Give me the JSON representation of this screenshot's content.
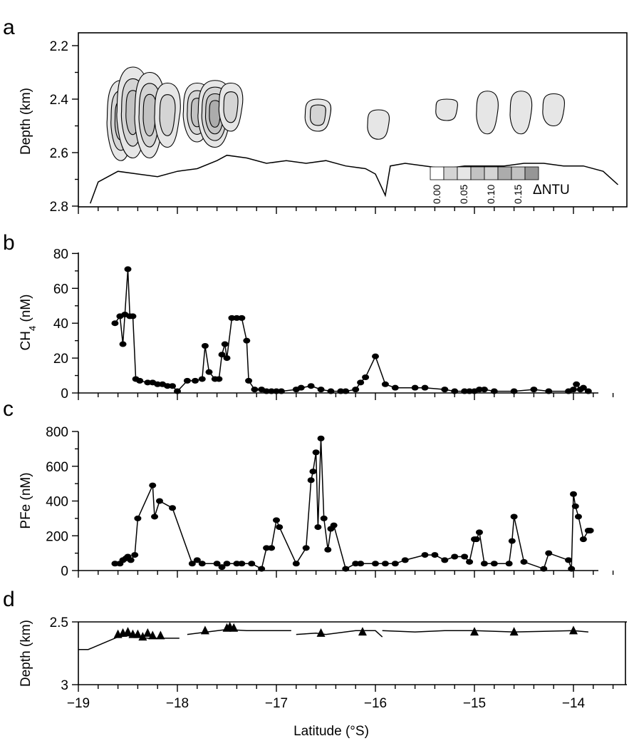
{
  "panels": {
    "a": "a",
    "b": "b",
    "c": "c",
    "d": "d"
  },
  "chart_data": [
    {
      "type": "heatmap",
      "panel": "a",
      "ylabel": "Depth (km)",
      "yticks": [
        "2.2",
        "2.4",
        "2.6",
        "2.8"
      ],
      "ylim": [
        2.15,
        2.8
      ],
      "xlim": [
        -19,
        -13.5
      ],
      "legend": {
        "title": "ΔNTU",
        "ticks": [
          "0.00",
          "0.05",
          "0.10",
          "0.15"
        ],
        "colors": [
          "#ffffff",
          "#e6e6e6",
          "#d4d4d4",
          "#c2c2c2",
          "#acacac",
          "#969696"
        ]
      },
      "plumes": [
        {
          "lat": -18.57,
          "top": 2.33,
          "bottom": 2.63,
          "level": 0.05
        },
        {
          "lat": -18.45,
          "top": 2.28,
          "bottom": 2.62,
          "level": 0.07
        },
        {
          "lat": -18.28,
          "top": 2.3,
          "bottom": 2.62,
          "level": 0.06
        },
        {
          "lat": -18.1,
          "top": 2.34,
          "bottom": 2.58,
          "level": 0.04
        },
        {
          "lat": -17.8,
          "top": 2.34,
          "bottom": 2.56,
          "level": 0.05
        },
        {
          "lat": -17.62,
          "top": 2.33,
          "bottom": 2.58,
          "level": 0.08
        },
        {
          "lat": -17.46,
          "top": 2.34,
          "bottom": 2.52,
          "level": 0.03
        },
        {
          "lat": -16.58,
          "top": 2.4,
          "bottom": 2.52,
          "level": 0.04
        },
        {
          "lat": -15.97,
          "top": 2.44,
          "bottom": 2.55,
          "level": 0.02
        },
        {
          "lat": -15.28,
          "top": 2.4,
          "bottom": 2.48,
          "level": 0.02
        },
        {
          "lat": -14.87,
          "top": 2.37,
          "bottom": 2.53,
          "level": 0.02
        },
        {
          "lat": -14.53,
          "top": 2.37,
          "bottom": 2.53,
          "level": 0.02
        },
        {
          "lat": -14.2,
          "top": 2.38,
          "bottom": 2.5,
          "level": 0.02
        }
      ],
      "bottom_profile": {
        "lat": [
          -18.88,
          -18.8,
          -18.6,
          -18.4,
          -18.2,
          -18.0,
          -17.8,
          -17.6,
          -17.5,
          -17.3,
          -17.1,
          -16.9,
          -16.7,
          -16.5,
          -16.3,
          -16.1,
          -16.0,
          -15.95,
          -15.9,
          -15.85,
          -15.7,
          -15.5,
          -15.3,
          -15.1,
          -14.9,
          -14.7,
          -14.5,
          -14.3,
          -14.1,
          -13.9,
          -13.7,
          -13.55
        ],
        "depth": [
          2.79,
          2.71,
          2.67,
          2.68,
          2.69,
          2.67,
          2.66,
          2.63,
          2.61,
          2.62,
          2.64,
          2.63,
          2.64,
          2.63,
          2.65,
          2.66,
          2.68,
          2.72,
          2.76,
          2.65,
          2.64,
          2.65,
          2.66,
          2.65,
          2.65,
          2.65,
          2.64,
          2.64,
          2.65,
          2.65,
          2.67,
          2.72
        ]
      }
    },
    {
      "type": "line",
      "panel": "b",
      "ylabel": "CH",
      "ylabel_sub": "4",
      "ylabel_unit": " (nM)",
      "yticks": [
        "0",
        "20",
        "40",
        "60",
        "80"
      ],
      "ylim": [
        0,
        80
      ],
      "xlim": [
        -19,
        -13.5
      ],
      "series": [
        {
          "x": [
            -18.63,
            -18.58,
            -18.55,
            -18.53,
            -18.5,
            -18.48,
            -18.45,
            -18.42,
            -18.38,
            -18.3,
            -18.25,
            -18.2,
            -18.15,
            -18.1,
            -18.05,
            -18.0,
            -17.9,
            -17.82,
            -17.75,
            -17.72,
            -17.68,
            -17.62,
            -17.58,
            -17.55,
            -17.52,
            -17.5,
            -17.45,
            -17.4,
            -17.35,
            -17.3,
            -17.28,
            -17.22,
            -17.15,
            -17.1,
            -17.05,
            -17.0,
            -16.95,
            -16.8,
            -16.75,
            -16.65,
            -16.55,
            -16.45,
            -16.35,
            -16.3,
            -16.2,
            -16.15,
            -16.1,
            -16.0,
            -15.9,
            -15.8,
            -15.6,
            -15.5,
            -15.3,
            -15.2,
            -15.1,
            -15.05,
            -15.0,
            -14.95,
            -14.9,
            -14.8,
            -14.6,
            -14.4,
            -14.25,
            -14.05,
            -14.0,
            -13.97,
            -13.93,
            -13.9,
            -13.85
          ],
          "y": [
            40,
            44,
            28,
            45,
            71,
            44,
            44,
            8,
            7,
            6,
            6,
            5,
            5,
            4,
            4,
            1,
            7,
            7,
            8,
            27,
            12,
            8,
            8,
            22,
            28,
            20,
            43,
            43,
            43,
            30,
            7,
            2,
            2,
            1,
            1,
            1,
            1,
            2,
            3,
            4,
            2,
            1,
            1,
            1,
            2,
            6,
            9,
            21,
            5,
            3,
            3,
            3,
            2,
            1,
            1,
            1,
            1,
            2,
            2,
            1,
            1,
            2,
            1,
            1,
            2,
            5,
            2,
            3,
            1
          ]
        }
      ]
    },
    {
      "type": "line",
      "panel": "c",
      "ylabel": "PFe (nM)",
      "yticks": [
        "0",
        "200",
        "400",
        "600",
        "800"
      ],
      "ylim": [
        0,
        800
      ],
      "xlim": [
        -19,
        -13.5
      ],
      "series": [
        {
          "x": [
            -18.63,
            -18.58,
            -18.55,
            -18.52,
            -18.5,
            -18.47,
            -18.43,
            -18.4,
            -18.25,
            -18.23,
            -18.18,
            -18.05,
            -17.85,
            -17.8,
            -17.75,
            -17.6,
            -17.55,
            -17.5,
            -17.4,
            -17.35,
            -17.25,
            -17.15,
            -17.1,
            -17.05,
            -17.0,
            -16.97,
            -16.8,
            -16.7,
            -16.65,
            -16.63,
            -16.6,
            -16.58,
            -16.55,
            -16.52,
            -16.48,
            -16.45,
            -16.42,
            -16.3,
            -16.2,
            -16.15,
            -16.0,
            -15.9,
            -15.8,
            -15.7,
            -15.5,
            -15.4,
            -15.3,
            -15.2,
            -15.1,
            -15.05,
            -15.0,
            -14.98,
            -14.95,
            -14.9,
            -14.8,
            -14.65,
            -14.62,
            -14.6,
            -14.5,
            -14.3,
            -14.25,
            -14.05,
            -14.02,
            -14.0,
            -13.98,
            -13.95,
            -13.9,
            -13.85,
            -13.83
          ],
          "y": [
            40,
            40,
            60,
            70,
            80,
            60,
            90,
            300,
            490,
            310,
            400,
            360,
            40,
            60,
            40,
            40,
            20,
            40,
            40,
            40,
            40,
            10,
            130,
            130,
            290,
            250,
            40,
            130,
            520,
            570,
            680,
            250,
            760,
            300,
            120,
            240,
            260,
            10,
            40,
            40,
            40,
            40,
            40,
            60,
            90,
            90,
            60,
            80,
            80,
            50,
            180,
            180,
            220,
            40,
            40,
            40,
            170,
            310,
            50,
            10,
            100,
            60,
            10,
            440,
            370,
            310,
            180,
            230,
            230
          ]
        }
      ]
    },
    {
      "type": "line",
      "panel": "d",
      "ylabel": "Depth (km)",
      "xlabel": "Latitude (°S)",
      "yticks": [
        "2.5",
        "3"
      ],
      "ylim": [
        2.5,
        3.0
      ],
      "xlim": [
        -19,
        -13.5
      ],
      "xticks": [
        "−19",
        "−18",
        "−17",
        "−16",
        "−15",
        "−14"
      ],
      "xtick_values": [
        -19,
        -18,
        -17,
        -16,
        -15,
        -14
      ],
      "track_segments": [
        {
          "x": [
            -19.0,
            -18.9,
            -18.6,
            -18.5,
            -18.3,
            -17.98
          ],
          "y": [
            2.72,
            2.72,
            2.62,
            2.61,
            2.63,
            2.63
          ]
        },
        {
          "x": [
            -17.9,
            -17.7,
            -17.5,
            -17.3,
            -16.9,
            -16.85
          ],
          "y": [
            2.6,
            2.58,
            2.56,
            2.57,
            2.57,
            2.57
          ]
        },
        {
          "x": [
            -16.8,
            -16.6,
            -16.5,
            -16.2,
            -16.0,
            -15.93
          ],
          "y": [
            2.6,
            2.59,
            2.6,
            2.57,
            2.57,
            2.62
          ]
        },
        {
          "x": [
            -15.93,
            -15.6,
            -15.3,
            -15.0,
            -14.6,
            -14.0,
            -13.85
          ],
          "y": [
            2.57,
            2.58,
            2.57,
            2.57,
            2.58,
            2.57,
            2.58
          ]
        }
      ],
      "stations": {
        "x": [
          -18.6,
          -18.55,
          -18.5,
          -18.45,
          -18.4,
          -18.35,
          -18.3,
          -18.25,
          -18.17,
          -17.72,
          -17.5,
          -17.47,
          -17.43,
          -16.55,
          -16.13,
          -15.0,
          -14.6,
          -14.0
        ],
        "y": [
          2.6,
          2.59,
          2.58,
          2.6,
          2.6,
          2.62,
          2.59,
          2.61,
          2.61,
          2.57,
          2.55,
          2.54,
          2.55,
          2.59,
          2.58,
          2.58,
          2.58,
          2.57
        ]
      }
    }
  ]
}
